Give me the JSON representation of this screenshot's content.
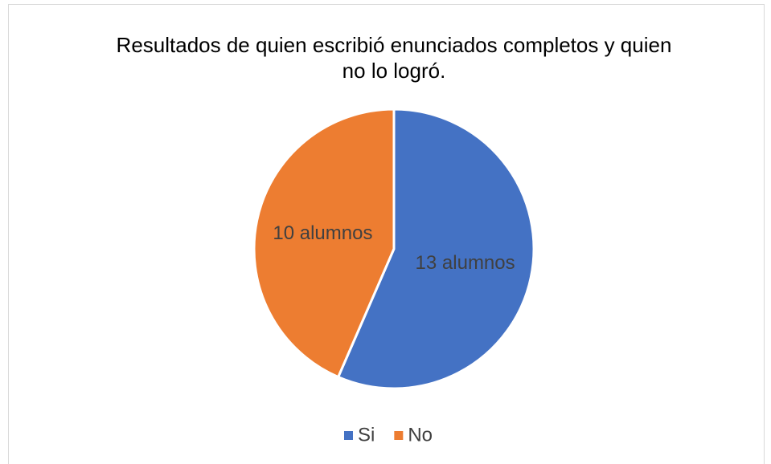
{
  "chart_data": {
    "type": "pie",
    "title": "Resultados de quien escribió enunciados completos y quien no lo logró.",
    "categories": [
      "Si",
      "No"
    ],
    "values": [
      13,
      10
    ],
    "value_labels": [
      "13 alumnos",
      "10 alumnos"
    ],
    "colors": [
      "#4472c4",
      "#ed7d31"
    ],
    "legend": "bottom"
  }
}
